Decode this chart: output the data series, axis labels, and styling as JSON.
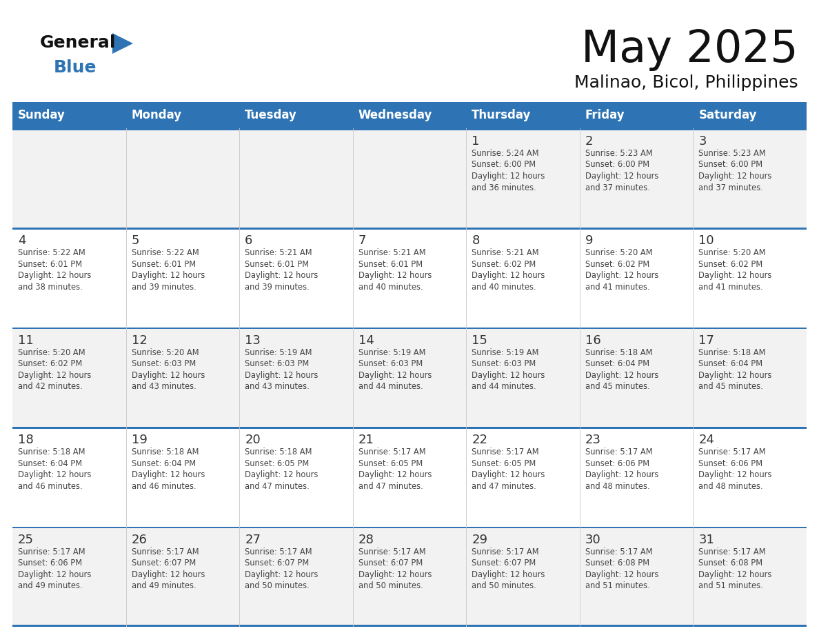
{
  "title": "May 2025",
  "subtitle": "Malinao, Bicol, Philippines",
  "header_bg": "#2E74B5",
  "header_text_color": "#FFFFFF",
  "day_names": [
    "Sunday",
    "Monday",
    "Tuesday",
    "Wednesday",
    "Thursday",
    "Friday",
    "Saturday"
  ],
  "cell_bg_odd": "#F2F2F2",
  "cell_bg_even": "#FFFFFF",
  "divider_color": "#2E74B5",
  "text_color": "#444444",
  "num_color": "#333333",
  "days": [
    {
      "day": 1,
      "col": 4,
      "row": 0,
      "sunrise": "5:24 AM",
      "sunset": "6:00 PM",
      "daylight": "12 hours and 36 minutes."
    },
    {
      "day": 2,
      "col": 5,
      "row": 0,
      "sunrise": "5:23 AM",
      "sunset": "6:00 PM",
      "daylight": "12 hours and 37 minutes."
    },
    {
      "day": 3,
      "col": 6,
      "row": 0,
      "sunrise": "5:23 AM",
      "sunset": "6:00 PM",
      "daylight": "12 hours and 37 minutes."
    },
    {
      "day": 4,
      "col": 0,
      "row": 1,
      "sunrise": "5:22 AM",
      "sunset": "6:01 PM",
      "daylight": "12 hours and 38 minutes."
    },
    {
      "day": 5,
      "col": 1,
      "row": 1,
      "sunrise": "5:22 AM",
      "sunset": "6:01 PM",
      "daylight": "12 hours and 39 minutes."
    },
    {
      "day": 6,
      "col": 2,
      "row": 1,
      "sunrise": "5:21 AM",
      "sunset": "6:01 PM",
      "daylight": "12 hours and 39 minutes."
    },
    {
      "day": 7,
      "col": 3,
      "row": 1,
      "sunrise": "5:21 AM",
      "sunset": "6:01 PM",
      "daylight": "12 hours and 40 minutes."
    },
    {
      "day": 8,
      "col": 4,
      "row": 1,
      "sunrise": "5:21 AM",
      "sunset": "6:02 PM",
      "daylight": "12 hours and 40 minutes."
    },
    {
      "day": 9,
      "col": 5,
      "row": 1,
      "sunrise": "5:20 AM",
      "sunset": "6:02 PM",
      "daylight": "12 hours and 41 minutes."
    },
    {
      "day": 10,
      "col": 6,
      "row": 1,
      "sunrise": "5:20 AM",
      "sunset": "6:02 PM",
      "daylight": "12 hours and 41 minutes."
    },
    {
      "day": 11,
      "col": 0,
      "row": 2,
      "sunrise": "5:20 AM",
      "sunset": "6:02 PM",
      "daylight": "12 hours and 42 minutes."
    },
    {
      "day": 12,
      "col": 1,
      "row": 2,
      "sunrise": "5:20 AM",
      "sunset": "6:03 PM",
      "daylight": "12 hours and 43 minutes."
    },
    {
      "day": 13,
      "col": 2,
      "row": 2,
      "sunrise": "5:19 AM",
      "sunset": "6:03 PM",
      "daylight": "12 hours and 43 minutes."
    },
    {
      "day": 14,
      "col": 3,
      "row": 2,
      "sunrise": "5:19 AM",
      "sunset": "6:03 PM",
      "daylight": "12 hours and 44 minutes."
    },
    {
      "day": 15,
      "col": 4,
      "row": 2,
      "sunrise": "5:19 AM",
      "sunset": "6:03 PM",
      "daylight": "12 hours and 44 minutes."
    },
    {
      "day": 16,
      "col": 5,
      "row": 2,
      "sunrise": "5:18 AM",
      "sunset": "6:04 PM",
      "daylight": "12 hours and 45 minutes."
    },
    {
      "day": 17,
      "col": 6,
      "row": 2,
      "sunrise": "5:18 AM",
      "sunset": "6:04 PM",
      "daylight": "12 hours and 45 minutes."
    },
    {
      "day": 18,
      "col": 0,
      "row": 3,
      "sunrise": "5:18 AM",
      "sunset": "6:04 PM",
      "daylight": "12 hours and 46 minutes."
    },
    {
      "day": 19,
      "col": 1,
      "row": 3,
      "sunrise": "5:18 AM",
      "sunset": "6:04 PM",
      "daylight": "12 hours and 46 minutes."
    },
    {
      "day": 20,
      "col": 2,
      "row": 3,
      "sunrise": "5:18 AM",
      "sunset": "6:05 PM",
      "daylight": "12 hours and 47 minutes."
    },
    {
      "day": 21,
      "col": 3,
      "row": 3,
      "sunrise": "5:17 AM",
      "sunset": "6:05 PM",
      "daylight": "12 hours and 47 minutes."
    },
    {
      "day": 22,
      "col": 4,
      "row": 3,
      "sunrise": "5:17 AM",
      "sunset": "6:05 PM",
      "daylight": "12 hours and 47 minutes."
    },
    {
      "day": 23,
      "col": 5,
      "row": 3,
      "sunrise": "5:17 AM",
      "sunset": "6:06 PM",
      "daylight": "12 hours and 48 minutes."
    },
    {
      "day": 24,
      "col": 6,
      "row": 3,
      "sunrise": "5:17 AM",
      "sunset": "6:06 PM",
      "daylight": "12 hours and 48 minutes."
    },
    {
      "day": 25,
      "col": 0,
      "row": 4,
      "sunrise": "5:17 AM",
      "sunset": "6:06 PM",
      "daylight": "12 hours and 49 minutes."
    },
    {
      "day": 26,
      "col": 1,
      "row": 4,
      "sunrise": "5:17 AM",
      "sunset": "6:07 PM",
      "daylight": "12 hours and 49 minutes."
    },
    {
      "day": 27,
      "col": 2,
      "row": 4,
      "sunrise": "5:17 AM",
      "sunset": "6:07 PM",
      "daylight": "12 hours and 50 minutes."
    },
    {
      "day": 28,
      "col": 3,
      "row": 4,
      "sunrise": "5:17 AM",
      "sunset": "6:07 PM",
      "daylight": "12 hours and 50 minutes."
    },
    {
      "day": 29,
      "col": 4,
      "row": 4,
      "sunrise": "5:17 AM",
      "sunset": "6:07 PM",
      "daylight": "12 hours and 50 minutes."
    },
    {
      "day": 30,
      "col": 5,
      "row": 4,
      "sunrise": "5:17 AM",
      "sunset": "6:08 PM",
      "daylight": "12 hours and 51 minutes."
    },
    {
      "day": 31,
      "col": 6,
      "row": 4,
      "sunrise": "5:17 AM",
      "sunset": "6:08 PM",
      "daylight": "12 hours and 51 minutes."
    }
  ]
}
